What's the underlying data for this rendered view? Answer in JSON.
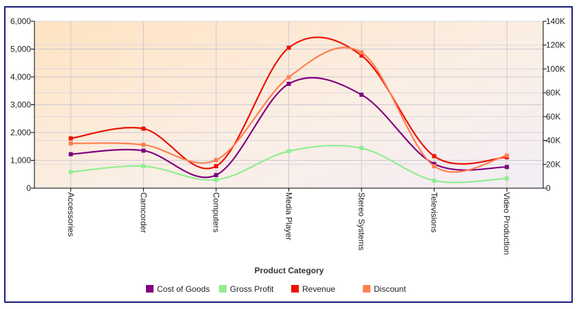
{
  "chart_data": {
    "type": "line",
    "title": "",
    "xlabel": "Product Category",
    "ylabel": "",
    "y2label": "",
    "categories": [
      "Accessories",
      "Camcorder",
      "Computers",
      "Media Player",
      "Stereo Systems",
      "Televisions",
      "Video Production"
    ],
    "y_left": {
      "min": 0,
      "max": 6000,
      "ticks": [
        0,
        1000,
        2000,
        3000,
        4000,
        5000,
        6000
      ],
      "tick_labels": [
        "0",
        "1,000",
        "2,000",
        "3,000",
        "4,000",
        "5,000",
        "6,000"
      ]
    },
    "y_right": {
      "min": 0,
      "max": 140000,
      "ticks": [
        0,
        20000,
        40000,
        60000,
        80000,
        100000,
        120000,
        140000
      ],
      "tick_labels": [
        "0",
        "20K",
        "40K",
        "60K",
        "80K",
        "100K",
        "120K",
        "140K"
      ]
    },
    "grid": true,
    "legend_position": "bottom",
    "series": [
      {
        "name": "Cost of Goods",
        "color": "#800080",
        "axis": "left",
        "values": [
          1220,
          1350,
          470,
          3750,
          3360,
          870,
          760
        ]
      },
      {
        "name": "Gross Profit",
        "color": "#90ee90",
        "axis": "left",
        "values": [
          580,
          790,
          300,
          1330,
          1440,
          270,
          350
        ]
      },
      {
        "name": "Revenue",
        "color": "#ee1100",
        "axis": "left",
        "values": [
          1790,
          2140,
          790,
          5050,
          4770,
          1150,
          1110
        ]
      },
      {
        "name": "Discount",
        "color": "#ff7f50",
        "axis": "left",
        "values": [
          1610,
          1560,
          1010,
          3990,
          4880,
          790,
          1170
        ]
      }
    ]
  }
}
